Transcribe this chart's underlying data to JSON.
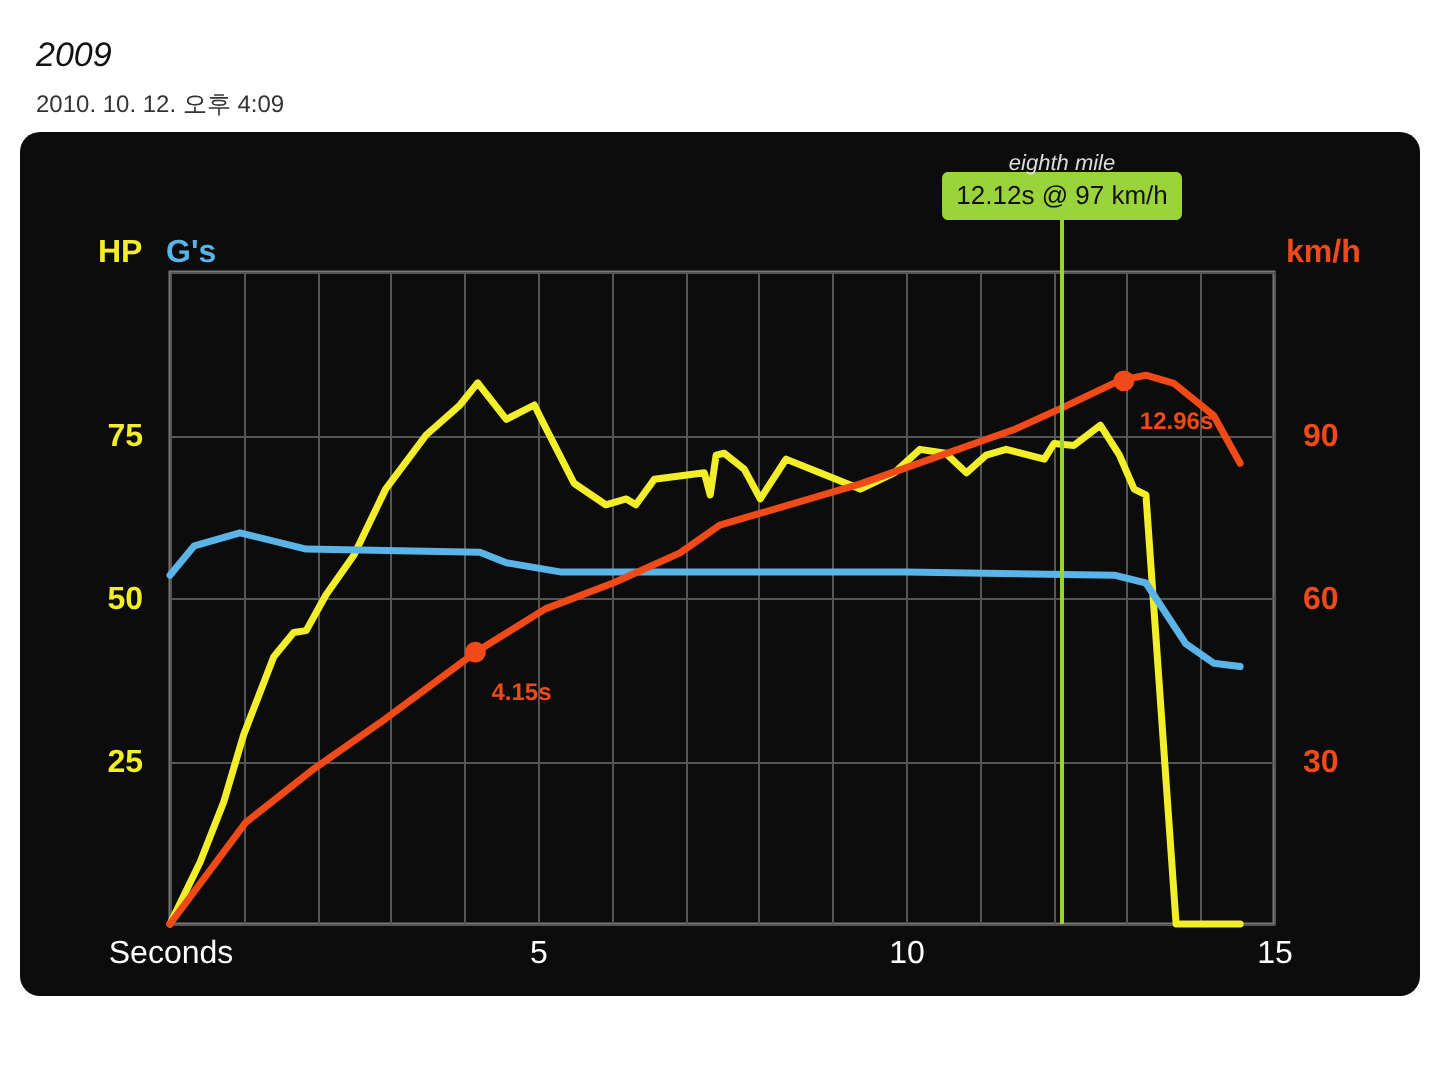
{
  "chart_data": {
    "type": "line",
    "subtitle": "2009",
    "annotations": [
      "2010. 10. 12. 오후 4:09",
      {
        "text": "4.15s",
        "x": 4.15,
        "y": 41.7
      },
      {
        "text": "12.96s",
        "x": 12.96,
        "y": 83.3
      },
      "12.12s @ 97 km/h"
    ],
    "xlim": [
      0,
      15
    ],
    "xticks": [
      {
        "value": 0,
        "label": "Seconds"
      },
      {
        "value": 1,
        "label": null
      },
      {
        "value": 2,
        "label": null
      },
      {
        "value": 3,
        "label": null
      },
      {
        "value": 4,
        "label": null
      },
      5,
      {
        "value": 6,
        "label": null
      },
      {
        "value": 7,
        "label": null
      },
      {
        "value": 8,
        "label": null
      },
      {
        "value": 9,
        "label": null
      },
      10,
      {
        "value": 11,
        "label": null
      },
      {
        "value": 12,
        "label": null
      },
      {
        "value": 13,
        "label": null
      },
      {
        "value": 14,
        "label": null
      },
      15
    ],
    "ylim": [
      0,
      100
    ],
    "yticks": [
      {
        "value": 0,
        "label": null
      },
      25,
      50,
      75,
      {
        "value": 100,
        "label": null
      }
    ],
    "y2lim": [
      0,
      120
    ],
    "y2ticks": [
      30,
      60,
      90
    ],
    "grid": true,
    "line_style": "solid",
    "ref_lines": [
      {
        "axis": "x",
        "value": 12.12,
        "label": "eighth mile",
        "color": "#9ad43a"
      }
    ],
    "series": [
      {
        "name": "HP",
        "color": "#f2ef2a",
        "x": [
          0,
          0.41,
          0.73,
          1.0,
          1.41,
          1.68,
          1.85,
          2.12,
          2.5,
          2.93,
          3.48,
          3.94,
          4.18,
          4.57,
          4.95,
          5.11,
          5.49,
          5.92,
          6.2,
          6.33,
          6.58,
          7.26,
          7.34,
          7.42,
          7.53,
          7.8,
          8.02,
          8.37,
          8.83,
          9.38,
          9.84,
          10.19,
          10.54,
          10.82,
          11.09,
          11.36,
          11.88,
          12.01,
          12.28,
          12.64,
          12.9,
          13.1,
          13.26,
          13.67,
          14.54
        ],
        "values": [
          0,
          9.5,
          18.7,
          29,
          41,
          44.7,
          45,
          50.5,
          56.6,
          66.7,
          75,
          79.6,
          83,
          77.4,
          79.6,
          76,
          67.6,
          64.3,
          65.2,
          64.3,
          68.2,
          69.2,
          65.8,
          71.9,
          72.2,
          69.8,
          65.2,
          71.3,
          69.2,
          66.7,
          69.2,
          72.8,
          72.2,
          69.2,
          71.9,
          72.8,
          71.3,
          73.7,
          73.4,
          76.5,
          71.9,
          66.7,
          65.8,
          0,
          0
        ]
      },
      {
        "name": "G's",
        "color": "#5ab4e8",
        "x": [
          0,
          0.33,
          0.95,
          1.85,
          4.21,
          4.57,
          5.3,
          7.28,
          10,
          12.83,
          13.26,
          13.8,
          14.18,
          14.54
        ],
        "values": [
          53.5,
          58,
          60,
          57.5,
          57,
          55.4,
          54,
          54,
          54,
          53.5,
          52.3,
          43,
          40,
          39.5
        ]
      },
      {
        "name": "km/h",
        "color": "#f04a18",
        "axis": "y2",
        "x": [
          0,
          1.03,
          1.96,
          2.85,
          4.15,
          5.1,
          6.03,
          6.93,
          7.47,
          9.38,
          11.47,
          12.12,
          12.9,
          13.26,
          13.64,
          14.18,
          14.54
        ],
        "values": [
          0,
          18.7,
          28.6,
          37,
          50,
          58,
          62.8,
          68.3,
          73.4,
          81,
          91,
          95,
          100,
          101,
          99.5,
          93.6,
          84.8
        ]
      }
    ]
  }
}
